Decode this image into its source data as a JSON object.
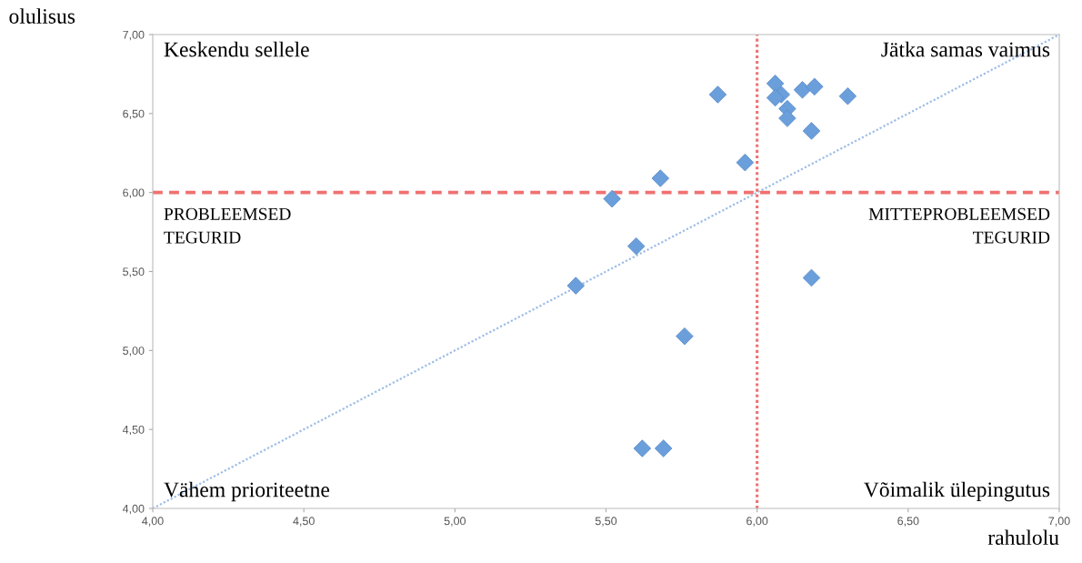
{
  "chart_data": {
    "type": "scatter",
    "xlabel": "rahulolu",
    "ylabel": "olulisus",
    "series": [
      {
        "color": "#6b9fdb",
        "marker": "diamond",
        "x": [
          5.87,
          6.06,
          6.08,
          6.06,
          6.15,
          6.19,
          6.3,
          6.1,
          6.1,
          6.18,
          5.96,
          5.68,
          5.52,
          5.6,
          5.4,
          5.76,
          5.62,
          5.69,
          6.18
        ],
        "values": [
          6.62,
          6.69,
          6.62,
          6.6,
          6.65,
          6.67,
          6.61,
          6.53,
          6.47,
          6.39,
          6.19,
          6.09,
          5.96,
          5.66,
          5.41,
          5.09,
          4.38,
          4.38,
          5.46
        ]
      },
      {
        "type": "line",
        "color": "#9dbde6",
        "line_style": "dotted",
        "marker": "none",
        "x": [
          4,
          7
        ],
        "values": [
          4,
          7
        ]
      }
    ],
    "xlim": [
      4,
      7
    ],
    "ylim": [
      4,
      7
    ],
    "xticks": [
      {
        "value": 4,
        "label": "4,00"
      },
      {
        "value": 4.5,
        "label": "4,50"
      },
      {
        "value": 5,
        "label": "5,00"
      },
      {
        "value": 5.5,
        "label": "5,50"
      },
      {
        "value": 6,
        "label": "6,00"
      },
      {
        "value": 6.5,
        "label": "6,50"
      },
      {
        "value": 7,
        "label": "7,00"
      }
    ],
    "yticks": [
      {
        "value": 4,
        "label": "4,00"
      },
      {
        "value": 4.5,
        "label": "4,50"
      },
      {
        "value": 5,
        "label": "5,00"
      },
      {
        "value": 5.5,
        "label": "5,50"
      },
      {
        "value": 6,
        "label": "6,00"
      },
      {
        "value": 6.5,
        "label": "6,50"
      },
      {
        "value": 7,
        "label": "7,00"
      }
    ],
    "ref_lines": [
      {
        "axis": "x",
        "value": 6,
        "color": "#f07070",
        "line_style": "dotted"
      },
      {
        "axis": "y",
        "value": 6,
        "color": "#f07070",
        "line_style": "dashed"
      }
    ],
    "annotations": [
      "Keskendu sellele",
      "Jätka samas vaimus",
      "PROBLEEMSED\nTEGURID",
      "MITTEPROBLEEMSED\nTEGURID",
      "Vähem prioriteetne",
      "Võimalik ülepingutus"
    ],
    "grid": false,
    "legend": false
  }
}
